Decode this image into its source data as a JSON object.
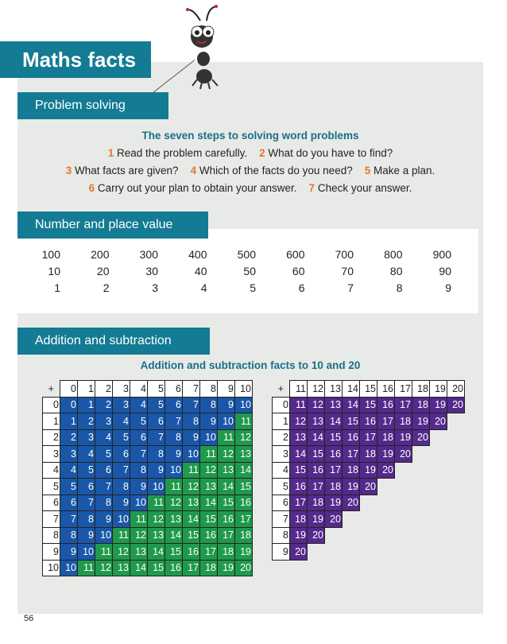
{
  "title": "Maths facts",
  "sections": {
    "problem_solving": "Problem solving",
    "place_value": "Number and place value",
    "addition": "Addition and subtraction"
  },
  "steps": {
    "heading": "The seven steps to solving word problems",
    "items": [
      {
        "n": "1",
        "text": "Read the problem carefully."
      },
      {
        "n": "2",
        "text": "What do you have to find?"
      },
      {
        "n": "3",
        "text": "What facts are given?"
      },
      {
        "n": "4",
        "text": "Which of the facts do you need?"
      },
      {
        "n": "5",
        "text": "Make a plan."
      },
      {
        "n": "6",
        "text": "Carry out your plan to obtain your answer."
      },
      {
        "n": "7",
        "text": "Check your answer."
      }
    ]
  },
  "place_value": [
    [
      "100",
      "200",
      "300",
      "400",
      "500",
      "600",
      "700",
      "800",
      "900"
    ],
    [
      "10",
      "20",
      "30",
      "40",
      "50",
      "60",
      "70",
      "80",
      "90"
    ],
    [
      "1",
      "2",
      "3",
      "4",
      "5",
      "6",
      "7",
      "8",
      "9"
    ]
  ],
  "tables_heading": "Addition and subtraction facts to 10 and 20",
  "table1": {
    "corner": "+",
    "cols": [
      0,
      1,
      2,
      3,
      4,
      5,
      6,
      7,
      8,
      9,
      10
    ],
    "rows": [
      0,
      1,
      2,
      3,
      4,
      5,
      6,
      7,
      8,
      9,
      10
    ],
    "colors": {
      "to10": "#1b57a8",
      "over10": "#1f9a4c"
    }
  },
  "table2": {
    "corner": "+",
    "cols": [
      11,
      12,
      13,
      14,
      15,
      16,
      17,
      18,
      19,
      20
    ],
    "rows": [
      0,
      1,
      2,
      3,
      4,
      5,
      6,
      7,
      8,
      9
    ],
    "max": 20,
    "colors": {
      "cell": "#542a8c"
    }
  },
  "page_number": "56",
  "colors": {
    "banner": "#137b93",
    "step_number": "#e8762c",
    "heading": "#1a6f8a"
  }
}
